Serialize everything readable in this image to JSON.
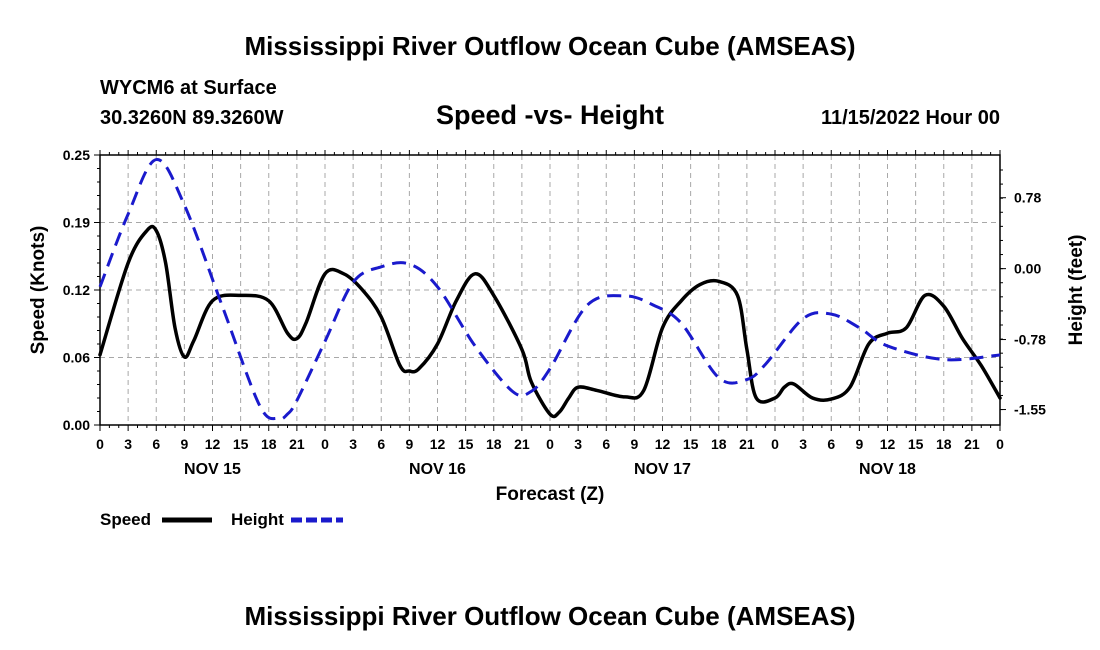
{
  "page": {
    "title": "Mississippi River Outflow Ocean Cube (AMSEAS)",
    "title_repeat": "Mississippi River Outflow Ocean Cube (AMSEAS)",
    "station": "WYCM6 at Surface",
    "coords": "30.3260N  89.3260W",
    "subtitle": "Speed -vs- Height",
    "datetime": "11/15/2022 Hour 00"
  },
  "chart_data": {
    "type": "line",
    "title": "Speed -vs- Height",
    "xlabel": "Forecast (Z)",
    "ylabel": "Speed (Knots)",
    "y2label": "Height (feet)",
    "x_range_hours": [
      0,
      96
    ],
    "ylim": [
      0,
      0.25
    ],
    "y2lim": [
      -1.72,
      1.25
    ],
    "grid": true,
    "x_tick_labels": [
      "0",
      "3",
      "6",
      "9",
      "12",
      "15",
      "18",
      "21",
      "0",
      "3",
      "6",
      "9",
      "12",
      "15",
      "18",
      "21",
      "0",
      "3",
      "6",
      "9",
      "12",
      "15",
      "18",
      "21",
      "0",
      "3",
      "6",
      "9",
      "12",
      "15",
      "18",
      "21",
      "0"
    ],
    "day_labels": [
      {
        "hour": 12,
        "label": "NOV 15"
      },
      {
        "hour": 36,
        "label": "NOV 16"
      },
      {
        "hour": 60,
        "label": "NOV 17"
      },
      {
        "hour": 84,
        "label": "NOV 18"
      }
    ],
    "y_ticks": [
      "0.00",
      "0.06",
      "0.12",
      "0.19",
      "0.25"
    ],
    "y_tick_values": [
      0,
      0.0625,
      0.125,
      0.1875,
      0.25
    ],
    "y2_ticks": [
      "0.78",
      "0.00",
      "-0.78",
      "-1.55"
    ],
    "y2_tick_values": [
      0.78,
      0,
      -0.78,
      -1.55
    ],
    "series": [
      {
        "name": "Speed",
        "color": "#000000",
        "dash": "solid",
        "axis": "left",
        "x": [
          0,
          3,
          5,
          6,
          7,
          8,
          9,
          10,
          12,
          15,
          18,
          20,
          21,
          22,
          24,
          26,
          28,
          30,
          32,
          33,
          34,
          36,
          38,
          40,
          42,
          45,
          46,
          48,
          49,
          50,
          51,
          53,
          56,
          58,
          60,
          62,
          64,
          66,
          68,
          69,
          70,
          72,
          73,
          74,
          76,
          78,
          80,
          82,
          84,
          86,
          88,
          90,
          92,
          94,
          96
        ],
        "values": [
          0.065,
          0.15,
          0.18,
          0.18,
          0.15,
          0.09,
          0.063,
          0.078,
          0.115,
          0.12,
          0.115,
          0.085,
          0.08,
          0.095,
          0.14,
          0.14,
          0.125,
          0.1,
          0.055,
          0.05,
          0.052,
          0.075,
          0.115,
          0.14,
          0.12,
          0.07,
          0.04,
          0.01,
          0.012,
          0.025,
          0.035,
          0.032,
          0.026,
          0.032,
          0.09,
          0.115,
          0.13,
          0.133,
          0.12,
          0.07,
          0.025,
          0.025,
          0.035,
          0.038,
          0.025,
          0.024,
          0.035,
          0.075,
          0.085,
          0.09,
          0.12,
          0.11,
          0.08,
          0.055,
          0.025
        ]
      },
      {
        "name": "Height",
        "color": "#1a1acc",
        "dash": "dashed",
        "axis": "right",
        "x": [
          0,
          3,
          6,
          9,
          13,
          17,
          19,
          20,
          21,
          24,
          27,
          30,
          33,
          36,
          40,
          44,
          46,
          48,
          52,
          56,
          59,
          62,
          66,
          69,
          71,
          75,
          78,
          81,
          84,
          90,
          96
        ],
        "values": [
          -0.2,
          0.6,
          1.2,
          0.7,
          -0.4,
          -1.5,
          -1.65,
          -1.6,
          -1.45,
          -0.8,
          -0.15,
          0.02,
          0.05,
          -0.2,
          -0.85,
          -1.35,
          -1.35,
          -1.1,
          -0.4,
          -0.3,
          -0.4,
          -0.6,
          -1.2,
          -1.22,
          -1.05,
          -0.55,
          -0.5,
          -0.65,
          -0.85,
          -1.0,
          -0.95
        ]
      }
    ],
    "legend": [
      {
        "label": "Speed",
        "color": "#000000",
        "dash": "solid"
      },
      {
        "label": "Height",
        "color": "#1a1acc",
        "dash": "dashed"
      }
    ]
  }
}
